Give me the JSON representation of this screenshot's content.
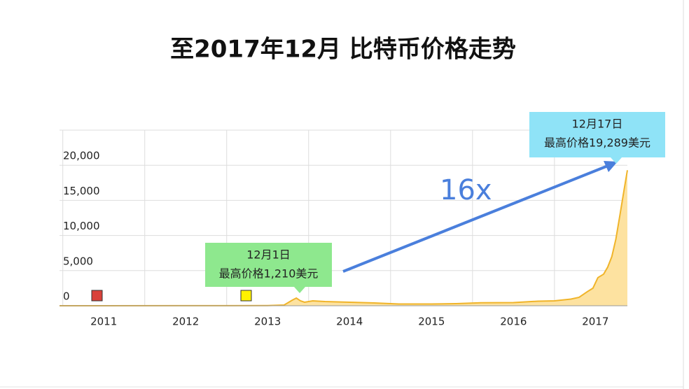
{
  "chart_data": {
    "type": "area",
    "title": "至2017年12月   比特币价格走势",
    "x": [
      2010.46,
      2011,
      2012,
      2012.5,
      2013,
      2013.2,
      2013.3,
      2013.35,
      2013.4,
      2013.45,
      2013.55,
      2013.7,
      2014,
      2014.3,
      2014.6,
      2015,
      2015.3,
      2015.6,
      2016,
      2016.3,
      2016.5,
      2016.7,
      2016.8,
      2016.9,
      2016.97,
      2017.03,
      2017.1,
      2017.15,
      2017.2,
      2017.25,
      2017.3,
      2017.35,
      2017.39
    ],
    "values": [
      0,
      0,
      5,
      10,
      20,
      100,
      800,
      1100,
      700,
      500,
      700,
      600,
      500,
      400,
      250,
      250,
      300,
      420,
      450,
      650,
      700,
      950,
      1200,
      2000,
      2500,
      4000,
      4500,
      5500,
      7000,
      9500,
      13000,
      16500,
      19289
    ],
    "color": "#f0b429",
    "fill": "#fde2a0",
    "xlim": [
      2010.46,
      2017.39
    ],
    "xticks": [
      2011,
      2012,
      2013,
      2014,
      2015,
      2016,
      2017
    ],
    "ylim": [
      0,
      25000
    ],
    "yticks": [
      0,
      {
        "value": 5000,
        "label": "5,000"
      },
      {
        "value": 10000,
        "label": "10,000"
      },
      {
        "value": 15000,
        "label": "15,000"
      },
      {
        "value": 20000,
        "label": "20,000"
      }
    ],
    "grid": true,
    "annotations": [
      {
        "lines": [
          "12月1日",
          "最高价格1,210美元"
        ],
        "color": "#8ee88e"
      },
      {
        "lines": [
          "12月17日",
          "最高价格19,289美元"
        ],
        "color": "#8fe3f7"
      }
    ],
    "arrow_label": "16x"
  }
}
